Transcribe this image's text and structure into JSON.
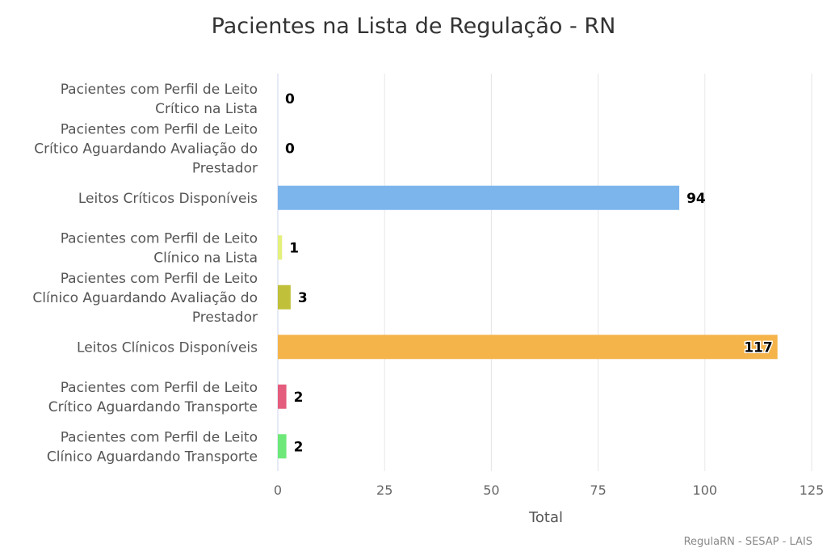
{
  "chart_data": {
    "type": "bar",
    "orientation": "horizontal",
    "title": "Pacientes na Lista de Regulação - RN",
    "xlabel": "Total",
    "ylabel": "",
    "xlim": [
      0,
      125
    ],
    "ticks": [
      "0",
      "25",
      "50",
      "75",
      "100",
      "125"
    ],
    "grid": true,
    "credits": "RegulaRN - SESAP - LAIS",
    "categories": [
      [
        "Pacientes com Perfil de Leito",
        "Crítico na Lista"
      ],
      [
        "Pacientes com Perfil de Leito",
        "Crítico Aguardando Avaliação do",
        "Prestador"
      ],
      [
        "Leitos Críticos Disponíveis"
      ],
      [
        "Pacientes com Perfil de Leito",
        "Clínico na Lista"
      ],
      [
        "Pacientes com Perfil de Leito",
        "Clínico Aguardando Avaliação do",
        "Prestador"
      ],
      [
        "Leitos Clínicos Disponíveis"
      ],
      [
        "Pacientes com Perfil de Leito",
        "Crítico Aguardando Transporte"
      ],
      [
        "Pacientes com Perfil de Leito",
        "Clínico Aguardando Transporte"
      ]
    ],
    "values": [
      0,
      0,
      94,
      1,
      3,
      117,
      2,
      2
    ],
    "colors": [
      "#7cb5ec",
      "#7cb5ec",
      "#7cb5ec",
      "#e4f07c",
      "#c0c03a",
      "#f4b44a",
      "#e45d7c",
      "#6ee878"
    ]
  }
}
